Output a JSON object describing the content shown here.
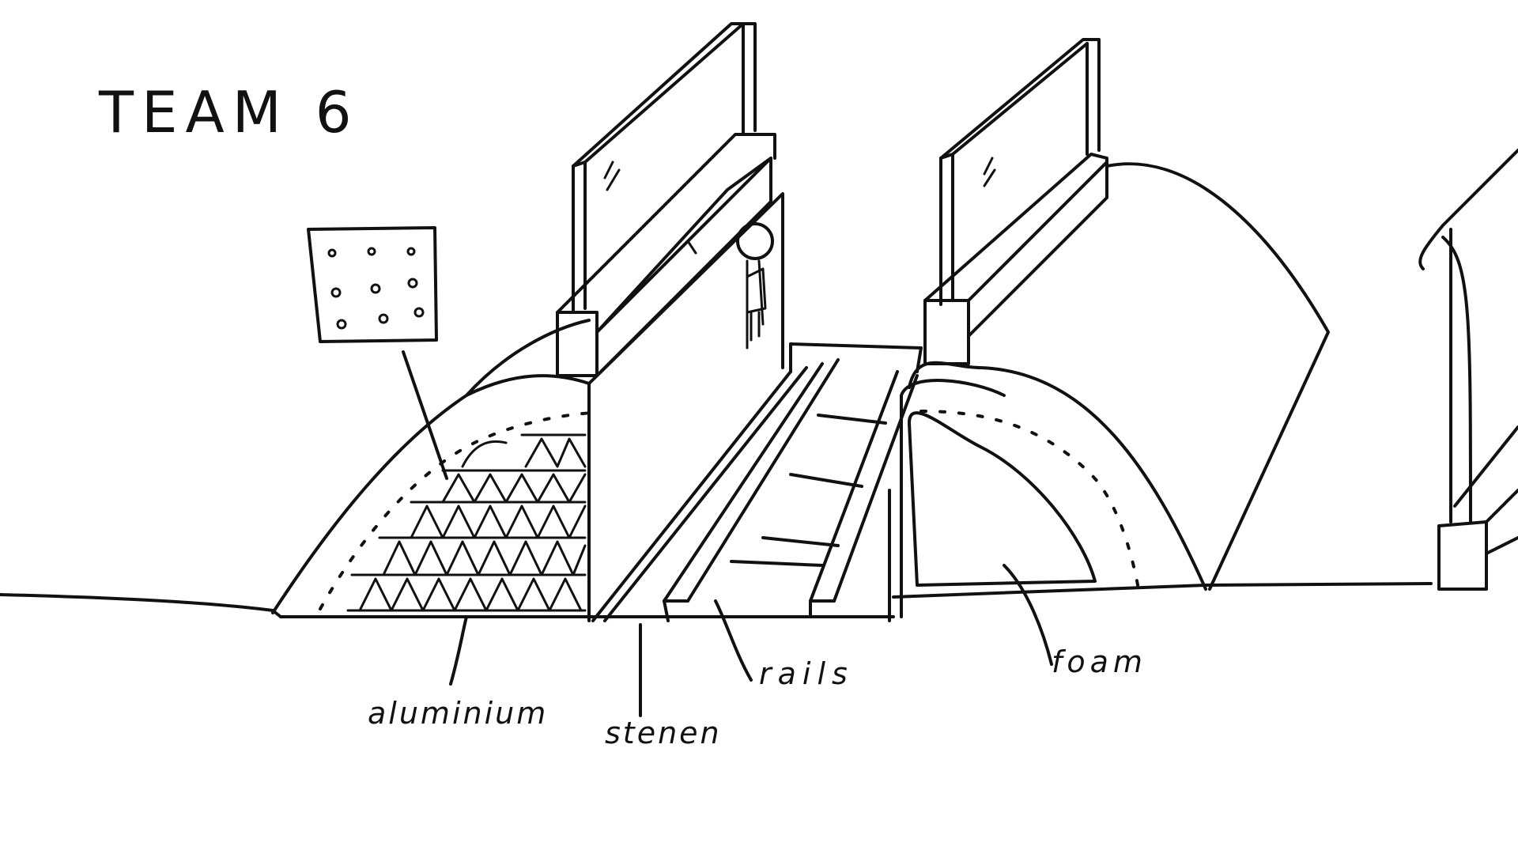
{
  "title": "TEAM 6",
  "labels": {
    "aluminium": "aluminium",
    "stenen": "stenen",
    "rails": "rails",
    "foam": "foam"
  },
  "colors": {
    "ink": "#111111",
    "paper": "#ffffff"
  }
}
